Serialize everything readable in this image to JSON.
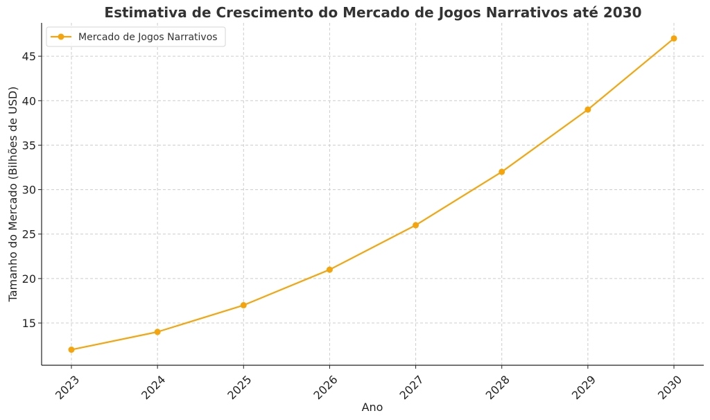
{
  "chart_data": {
    "type": "line",
    "title": "Estimativa de Crescimento do Mercado de Jogos Narrativos até 2030",
    "xlabel": "Ano",
    "ylabel": "Tamanho do Mercado (Bilhões de USD)",
    "x": [
      "2023",
      "2024",
      "2025",
      "2026",
      "2027",
      "2028",
      "2029",
      "2030"
    ],
    "series": [
      {
        "name": "Mercado de Jogos Narrativos",
        "values": [
          12,
          14,
          17,
          21,
          26,
          32,
          39,
          47
        ],
        "color": "#f5a50a"
      }
    ],
    "ylim": [
      10.25,
      48.75
    ],
    "yticks": [
      15,
      20,
      25,
      30,
      35,
      40,
      45
    ],
    "grid": true,
    "legend_position": "top-left"
  }
}
